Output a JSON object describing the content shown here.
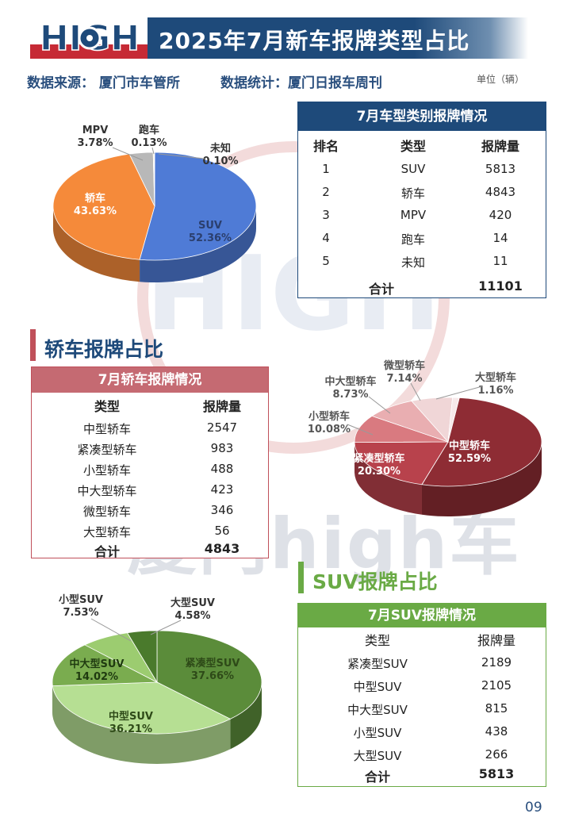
{
  "header": {
    "logo_text": "HIGH",
    "title": "2025年7月新车报牌类型占比",
    "source": "数据来源： 厦门市车管所",
    "stats": "数据统计：厦门日报车周刊",
    "unit": "单位（辆）"
  },
  "watermark": "厦门high车",
  "page_number": "09",
  "colors": {
    "navy": "#1e4a7a",
    "red": "#c0505a",
    "green": "#6aaa45"
  },
  "overall_table": {
    "title": "7月车型类别报牌情况",
    "headers": [
      "排名",
      "类型",
      "报牌量"
    ],
    "rows": [
      {
        "rank": "1",
        "type": "SUV",
        "count": "5813"
      },
      {
        "rank": "2",
        "type": "轿车",
        "count": "4843"
      },
      {
        "rank": "3",
        "type": "MPV",
        "count": "420"
      },
      {
        "rank": "4",
        "type": "跑车",
        "count": "14"
      },
      {
        "rank": "5",
        "type": "未知",
        "count": "11"
      }
    ],
    "total_label": "合计",
    "total": "11101"
  },
  "sedan_section": {
    "title": "轿车报牌占比",
    "table_title": "7月轿车报牌情况",
    "headers": [
      "类型",
      "报牌量"
    ],
    "rows": [
      {
        "type": "中型轿车",
        "count": "2547"
      },
      {
        "type": "紧凑型轿车",
        "count": "983"
      },
      {
        "type": "小型轿车",
        "count": "488"
      },
      {
        "type": "中大型轿车",
        "count": "423"
      },
      {
        "type": "微型轿车",
        "count": "346"
      },
      {
        "type": "大型轿车",
        "count": "56"
      }
    ],
    "total_label": "合计",
    "total": "4843"
  },
  "suv_section": {
    "title": "SUV报牌占比",
    "table_title": "7月SUV报牌情况",
    "headers": [
      "类型",
      "报牌量"
    ],
    "rows": [
      {
        "type": "紧凑型SUV",
        "count": "2189"
      },
      {
        "type": "中型SUV",
        "count": "2105"
      },
      {
        "type": "中大型SUV",
        "count": "815"
      },
      {
        "type": "小型SUV",
        "count": "438"
      },
      {
        "type": "大型SUV",
        "count": "266"
      }
    ],
    "total_label": "合计",
    "total": "5813"
  },
  "chart_data": [
    {
      "type": "pie",
      "slices": [
        {
          "name": "SUV",
          "value": 52.36,
          "label": "52.36%",
          "color": "#4f7bd6"
        },
        {
          "name": "轿车",
          "value": 43.63,
          "label": "43.63%",
          "color": "#f58a3a"
        },
        {
          "name": "MPV",
          "value": 3.78,
          "label": "3.78%",
          "color": "#b8b8b8"
        },
        {
          "name": "跑车",
          "value": 0.13,
          "label": "0.13%",
          "color": "#e8c24a"
        },
        {
          "name": "未知",
          "value": 0.1,
          "label": "0.10%",
          "color": "#5b9bd5"
        }
      ]
    },
    {
      "type": "pie",
      "slices": [
        {
          "name": "中型轿车",
          "value": 52.59,
          "label": "52.59%",
          "color": "#8e2c34"
        },
        {
          "name": "紧凑型轿车",
          "value": 20.3,
          "label": "20.30%",
          "color": "#b8424c"
        },
        {
          "name": "小型轿车",
          "value": 10.08,
          "label": "10.08%",
          "color": "#d97a80"
        },
        {
          "name": "中大型轿车",
          "value": 8.73,
          "label": "8.73%",
          "color": "#e9aeb1"
        },
        {
          "name": "微型轿车",
          "value": 7.14,
          "label": "7.14%",
          "color": "#f0d6d7"
        },
        {
          "name": "大型轿车",
          "value": 1.16,
          "label": "1.16%",
          "color": "#f7e9ea"
        }
      ]
    },
    {
      "type": "pie",
      "slices": [
        {
          "name": "紧凑型SUV",
          "value": 37.66,
          "label": "37.66%",
          "color": "#5b8c3a"
        },
        {
          "name": "中型SUV",
          "value": 36.21,
          "label": "36.21%",
          "color": "#b6df93"
        },
        {
          "name": "中大型SUV",
          "value": 14.02,
          "label": "14.02%",
          "color": "#7aac4f"
        },
        {
          "name": "小型SUV",
          "value": 7.53,
          "label": "7.53%",
          "color": "#9ccc70"
        },
        {
          "name": "大型SUV",
          "value": 4.58,
          "label": "4.58%",
          "color": "#4a7a2c"
        }
      ]
    }
  ]
}
